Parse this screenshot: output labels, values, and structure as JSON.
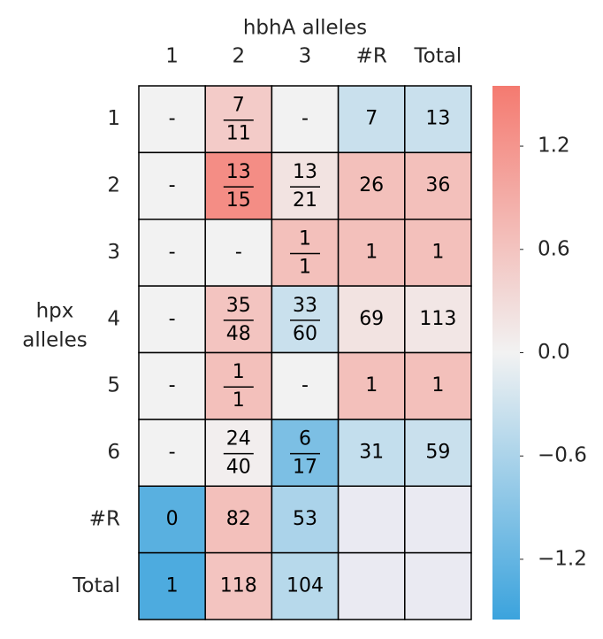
{
  "chart_data": {
    "type": "heatmap",
    "x_label": "hbhA alleles",
    "y_label": [
      "hpx",
      "alleles"
    ],
    "columns": [
      "1",
      "2",
      "3",
      "#R",
      "Total"
    ],
    "rows": [
      "1",
      "2",
      "3",
      "4",
      "5",
      "6",
      "#R",
      "Total"
    ],
    "values": [
      [
        0,
        0.5,
        0,
        -0.35,
        -0.35
      ],
      [
        0,
        1.3,
        0.2,
        0.65,
        0.65
      ],
      [
        0,
        0,
        0.65,
        0.65,
        0.65
      ],
      [
        0,
        0.6,
        -0.35,
        0.2,
        0.15
      ],
      [
        0,
        0.65,
        0,
        0.65,
        0.65
      ],
      [
        0,
        0.05,
        -1.0,
        -0.4,
        -0.35
      ],
      [
        -1.3,
        0.65,
        -0.6,
        null,
        null
      ],
      [
        -1.4,
        0.6,
        -0.5,
        null,
        null
      ]
    ],
    "annotations": [
      [
        "-",
        [
          "7",
          "11"
        ],
        "-",
        "7",
        "13"
      ],
      [
        "-",
        [
          "13",
          "15"
        ],
        [
          "13",
          "21"
        ],
        "26",
        "36"
      ],
      [
        "-",
        "-",
        [
          "1",
          "1"
        ],
        "1",
        "1"
      ],
      [
        "-",
        [
          "35",
          "48"
        ],
        [
          "33",
          "60"
        ],
        "69",
        "113"
      ],
      [
        "-",
        [
          "1",
          "1"
        ],
        "-",
        "1",
        "1"
      ],
      [
        "-",
        [
          "24",
          "40"
        ],
        [
          "6",
          "17"
        ],
        "31",
        "59"
      ],
      [
        "0",
        "82",
        "53",
        null,
        null
      ],
      [
        "1",
        "118",
        "104",
        null,
        null
      ]
    ],
    "vlim": [
      -1.55,
      1.55
    ],
    "vticks": [
      {
        "value": -1.2,
        "label": "−1.2"
      },
      {
        "value": -0.6,
        "label": "−0.6"
      },
      {
        "value": 0,
        "label": "0.0"
      },
      0.6,
      1.2
    ],
    "colormap": [
      "#3ba3dd",
      "#f2f2f2",
      "#f47a70"
    ],
    "missing_color": "#eaeaf2"
  }
}
